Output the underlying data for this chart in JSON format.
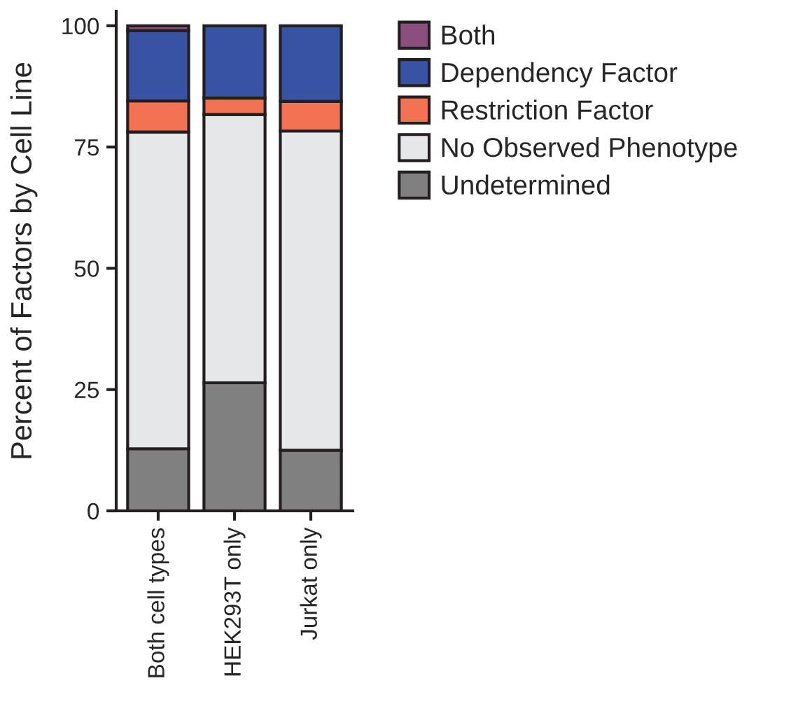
{
  "chart_data": {
    "type": "bar",
    "stacked": true,
    "ylabel": "Percent of Factors by Cell Line",
    "categories": [
      "Both cell types",
      "HEK293T only",
      "Jurkat only"
    ],
    "series": [
      {
        "name": "Undetermined",
        "color": "#808080",
        "values": [
          12.8,
          26.4,
          12.5
        ]
      },
      {
        "name": "No Observed Phenotype",
        "color": "#e6e7e8",
        "values": [
          65.3,
          55.3,
          65.8
        ]
      },
      {
        "name": "Restriction Factor",
        "color": "#f37254",
        "values": [
          6.4,
          3.4,
          6.1
        ]
      },
      {
        "name": "Dependency Factor",
        "color": "#3953a4",
        "values": [
          14.5,
          14.9,
          15.6
        ]
      },
      {
        "name": "Both",
        "color": "#8a4f7d",
        "values": [
          1.0,
          null,
          null
        ]
      }
    ],
    "ylim": [
      0,
      103
    ],
    "yticks": [
      0,
      25,
      50,
      75,
      100
    ],
    "grid": false,
    "legend": "top right"
  }
}
